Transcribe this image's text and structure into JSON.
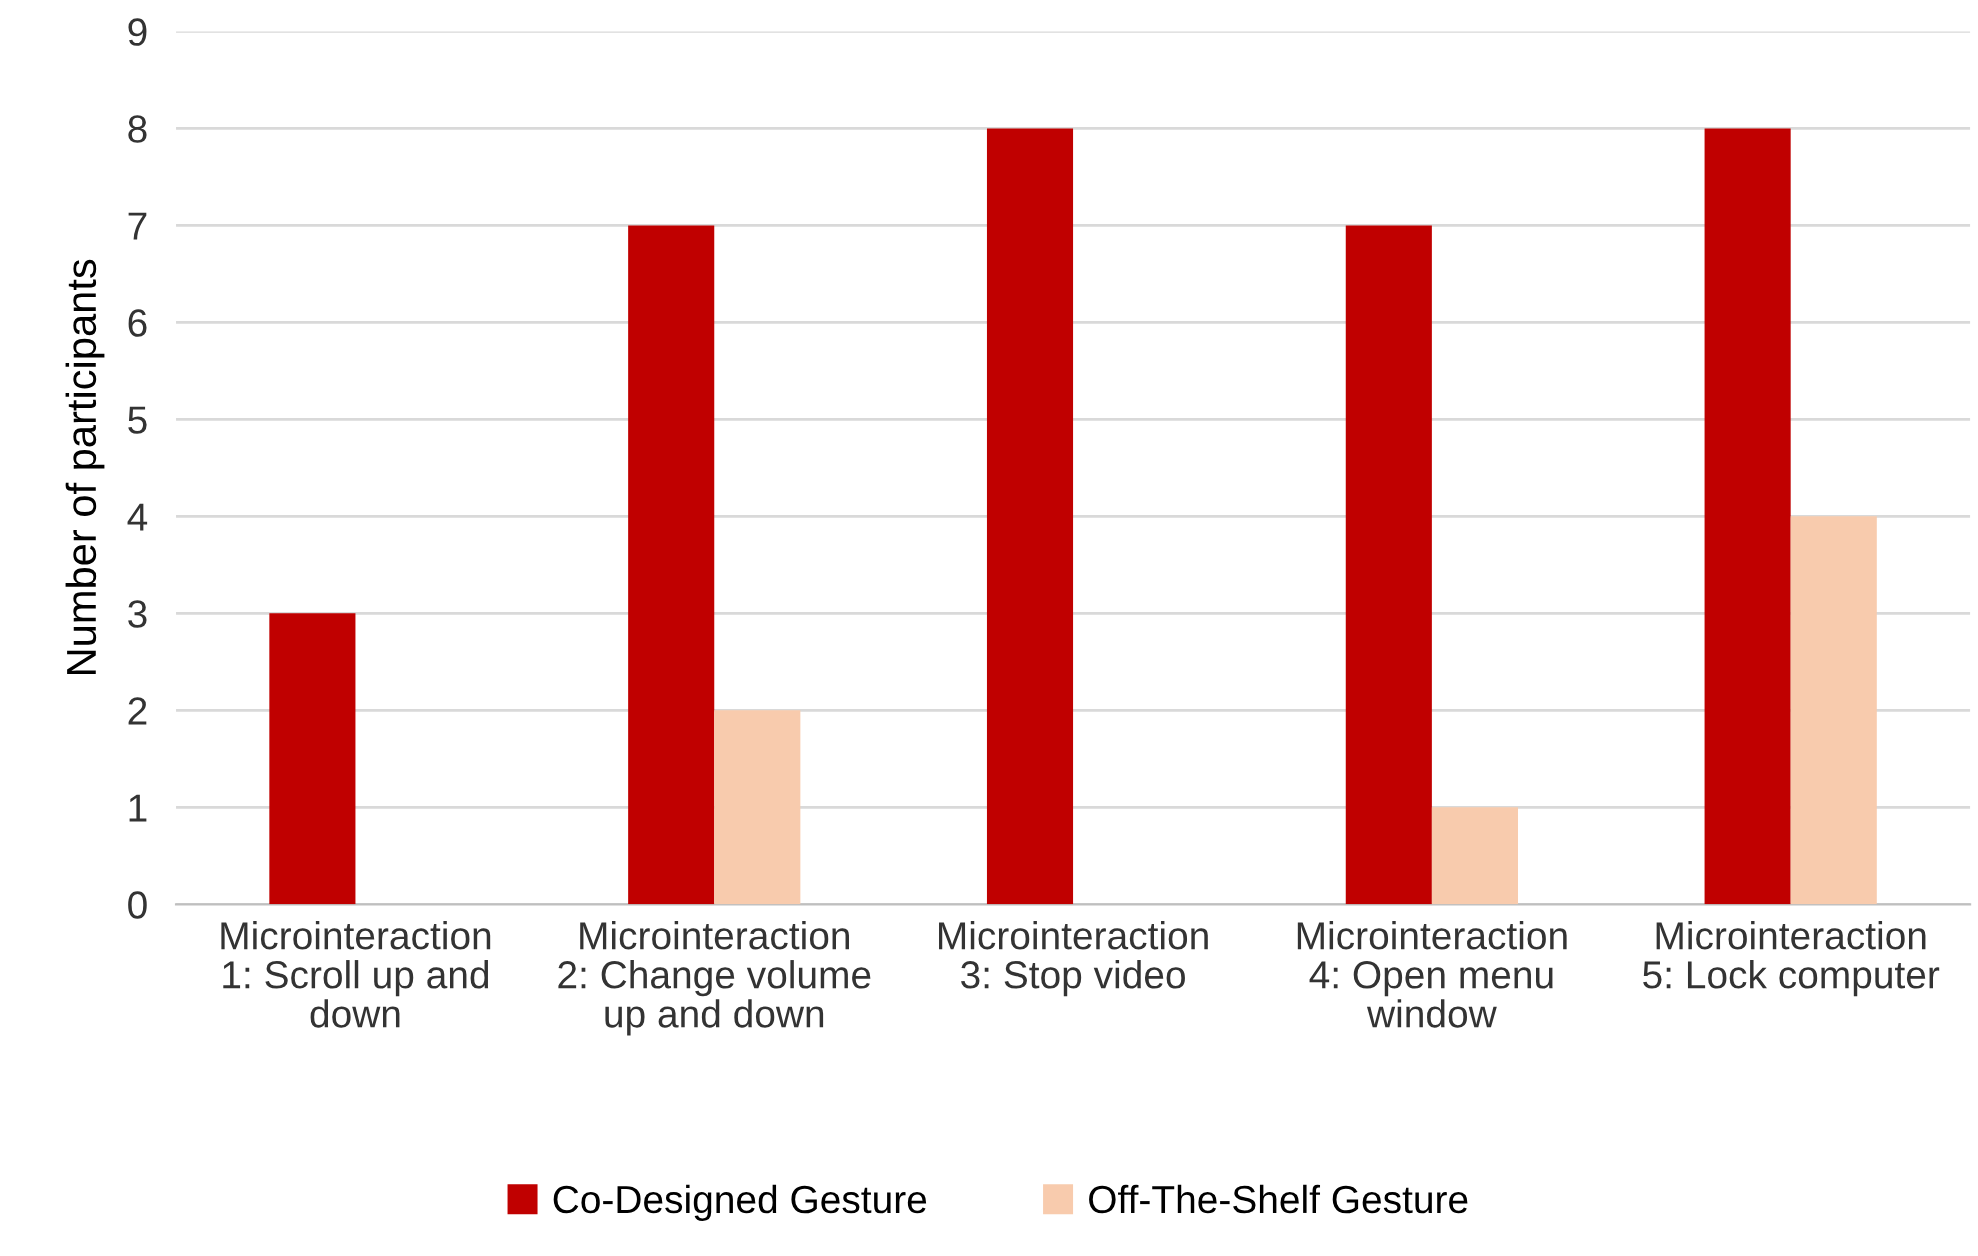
{
  "chart_data": {
    "type": "bar",
    "ylabel": "Number of participants",
    "categories": [
      "Microinteraction 1: Scroll up and down",
      "Microinteraction 2: Change volume up and down",
      "Microinteraction 3: Stop video",
      "Microinteraction 4: Open menu window",
      "Microinteraction 5: Lock computer"
    ],
    "series": [
      {
        "name": "Co-Designed Gesture",
        "color": "#c00000",
        "values": [
          3,
          7,
          8,
          7,
          8
        ]
      },
      {
        "name": "Off-The-Shelf Gesture",
        "color": "#f8cbad",
        "values": [
          0,
          2,
          0,
          1,
          4
        ]
      }
    ],
    "ylim": [
      0,
      9
    ],
    "yticks": [
      0,
      1,
      2,
      3,
      4,
      5,
      6,
      7,
      8,
      9
    ],
    "grid": "y",
    "legend": "bottom"
  }
}
